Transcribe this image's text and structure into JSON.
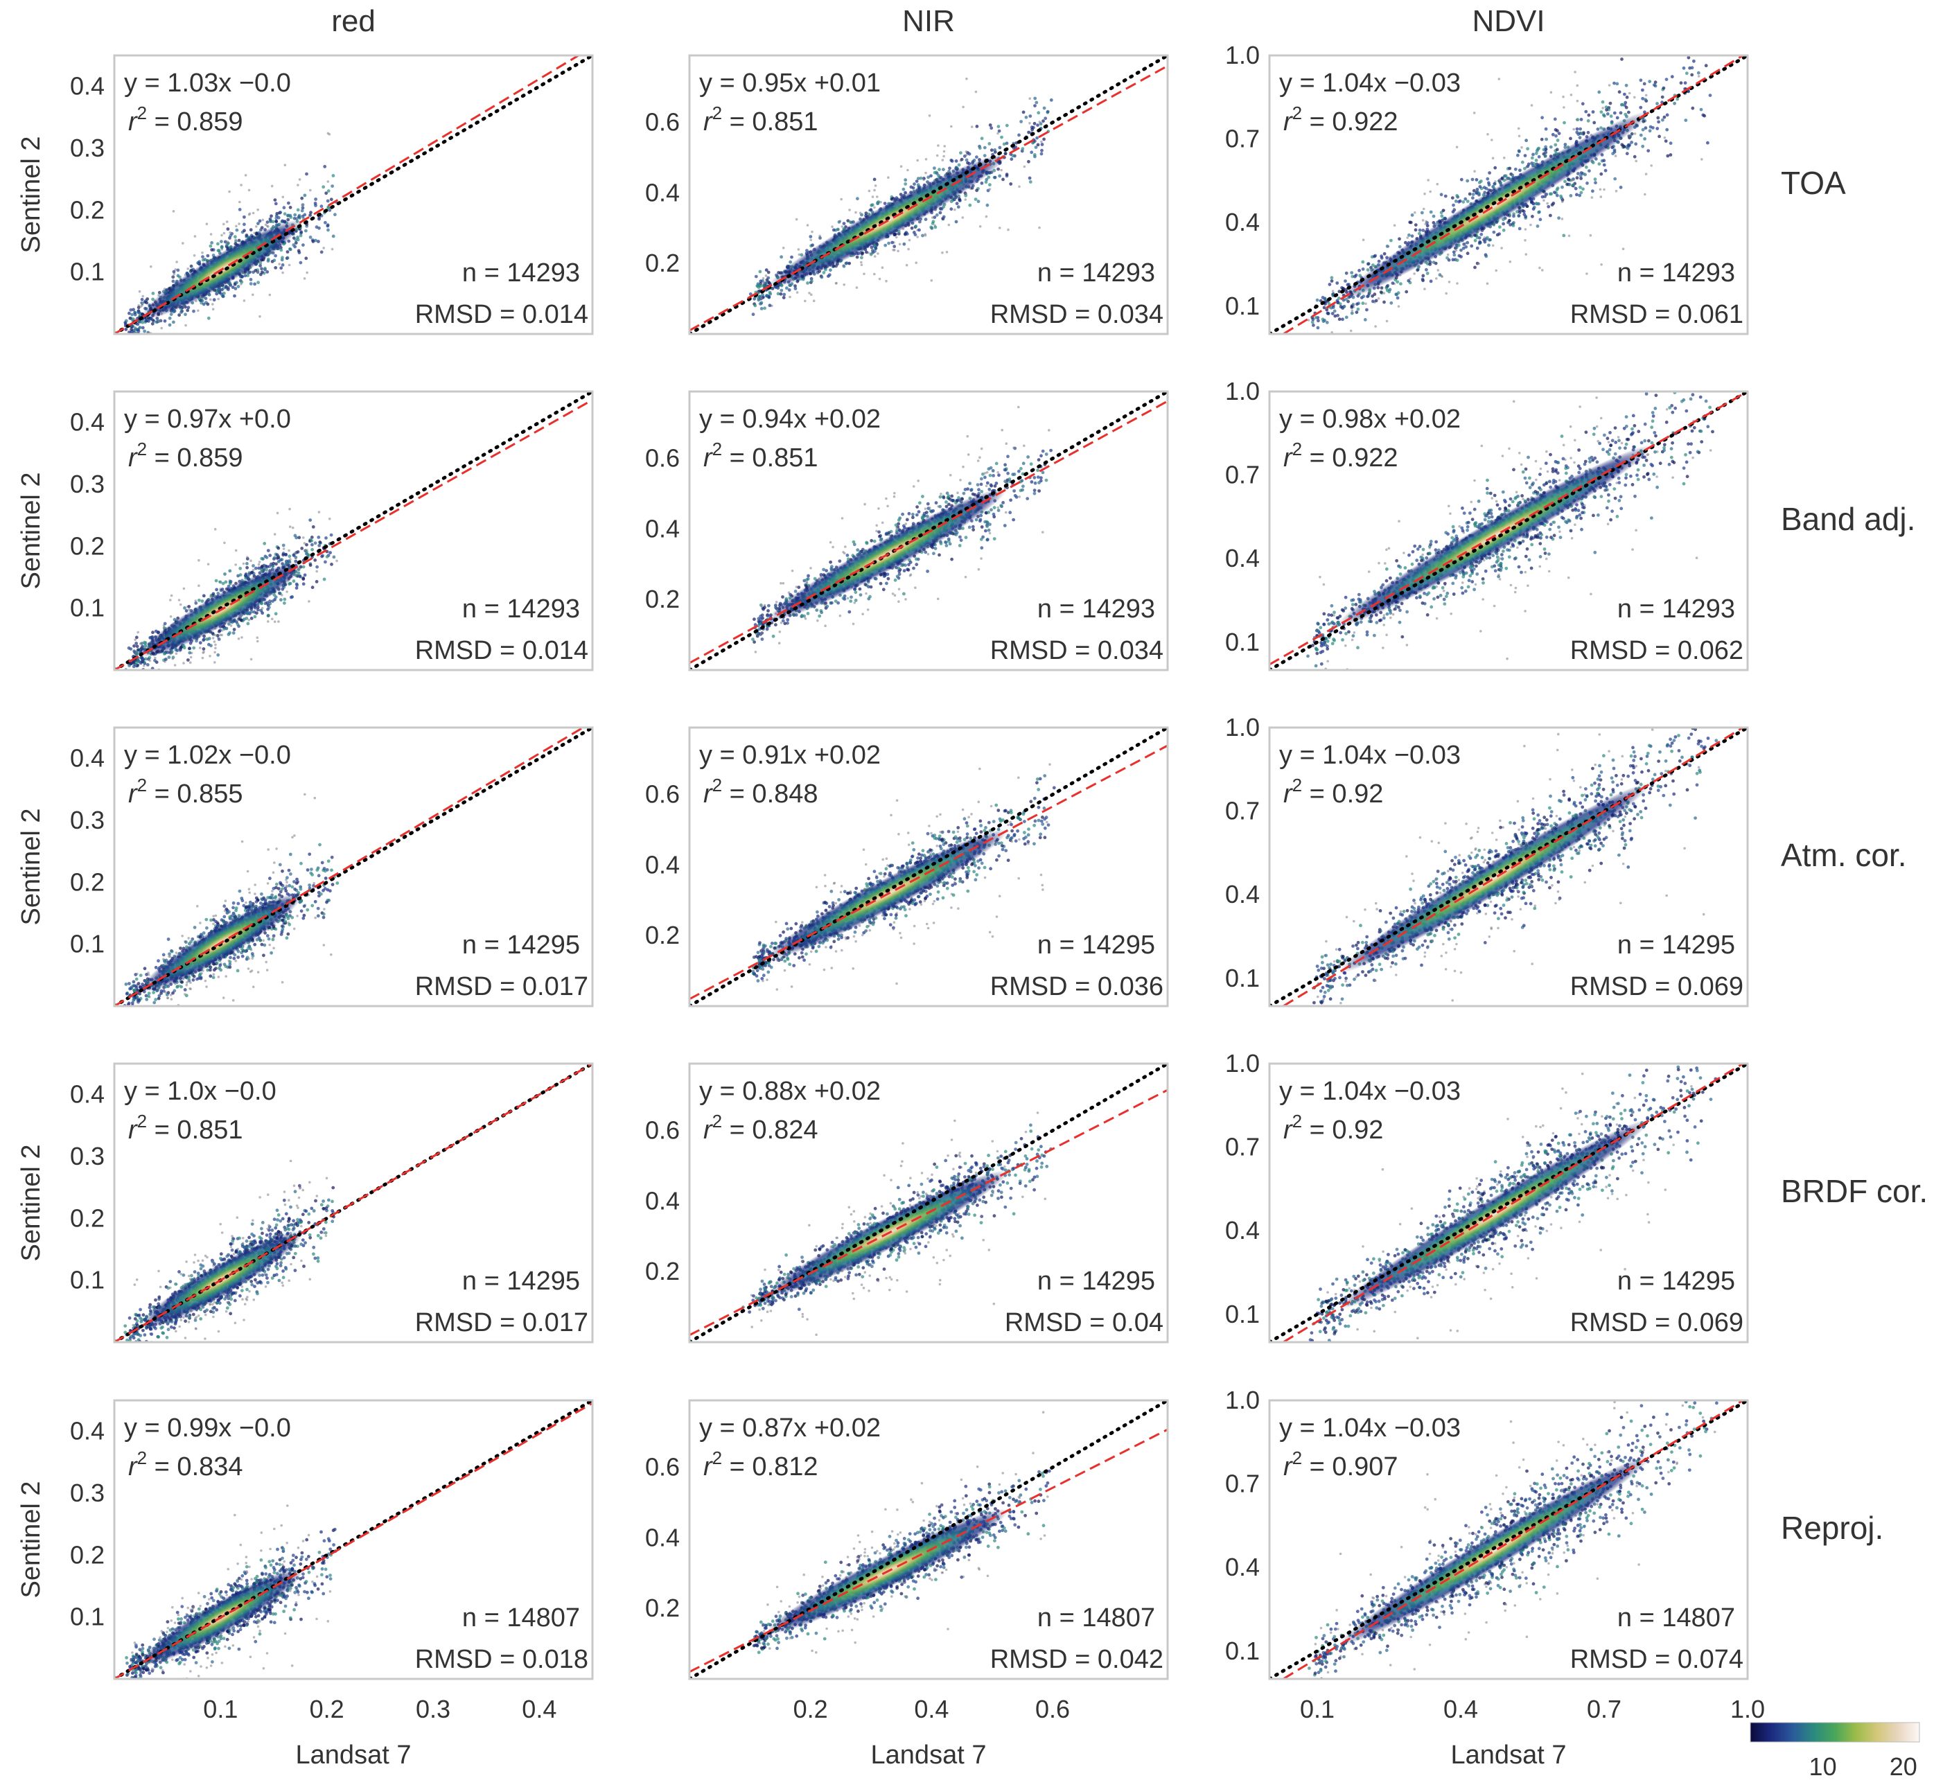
{
  "chart_data": {
    "type": "scatter",
    "subtype": "density-scatter",
    "columns": [
      {
        "id": "red",
        "title": "red",
        "range": [
          0.0,
          0.45
        ],
        "ticks": [
          0.1,
          0.2,
          0.3,
          0.4
        ],
        "tick_labels": [
          "0.1",
          "0.2",
          "0.3",
          "0.4"
        ],
        "x_ticks_shown": [
          0.1,
          0.2,
          0.3,
          0.4
        ],
        "x_tick_labels": [
          "0.1",
          "0.2",
          "0.3",
          "0.4"
        ],
        "cloud_center": [
          0.02,
          0.2
        ],
        "cloud_spread": 0.02
      },
      {
        "id": "nir",
        "title": "NIR",
        "range": [
          0.0,
          0.79
        ],
        "ticks": [
          0.2,
          0.4,
          0.6
        ],
        "tick_labels": [
          "0.2",
          "0.4",
          "0.6"
        ],
        "x_ticks_shown": [
          0.2,
          0.4,
          0.6
        ],
        "x_tick_labels": [
          "0.2",
          "0.4",
          "0.6"
        ],
        "cloud_center": [
          0.12,
          0.58
        ],
        "cloud_spread": 0.035
      },
      {
        "id": "ndvi",
        "title": "NDVI",
        "range": [
          0.0,
          1.0
        ],
        "ticks": [
          0.1,
          0.4,
          0.7,
          1.0
        ],
        "tick_labels": [
          "0.1",
          "0.4",
          "0.7",
          "1.0"
        ],
        "x_ticks_shown": [
          0.1,
          0.4,
          0.7,
          1.0
        ],
        "x_tick_labels": [
          "0.1",
          "0.4",
          "0.7",
          "1.0"
        ],
        "cloud_center": [
          0.12,
          0.9
        ],
        "cloud_spread": 0.07
      }
    ],
    "rows": [
      {
        "label": "TOA",
        "panels": [
          {
            "eq": "y = 1.03x −0.0",
            "r2": "0.859",
            "n": "n = 14293",
            "rmsd": "RMSD = 0.014",
            "slope": 1.03,
            "intercept": 0.0
          },
          {
            "eq": "y = 0.95x +0.01",
            "r2": "0.851",
            "n": "n = 14293",
            "rmsd": "RMSD = 0.034",
            "slope": 0.95,
            "intercept": 0.01
          },
          {
            "eq": "y = 1.04x −0.03",
            "r2": "0.922",
            "n": "n = 14293",
            "rmsd": "RMSD = 0.061",
            "slope": 1.04,
            "intercept": -0.03
          }
        ]
      },
      {
        "label": "Band adj.",
        "panels": [
          {
            "eq": "y = 0.97x +0.0",
            "r2": "0.859",
            "n": "n = 14293",
            "rmsd": "RMSD = 0.014",
            "slope": 0.97,
            "intercept": 0.0
          },
          {
            "eq": "y = 0.94x +0.02",
            "r2": "0.851",
            "n": "n = 14293",
            "rmsd": "RMSD = 0.034",
            "slope": 0.94,
            "intercept": 0.02
          },
          {
            "eq": "y = 0.98x +0.02",
            "r2": "0.922",
            "n": "n = 14293",
            "rmsd": "RMSD = 0.062",
            "slope": 0.98,
            "intercept": 0.02
          }
        ]
      },
      {
        "label": "Atm. cor.",
        "panels": [
          {
            "eq": "y = 1.02x −0.0",
            "r2": "0.855",
            "n": "n = 14295",
            "rmsd": "RMSD = 0.017",
            "slope": 1.02,
            "intercept": 0.0
          },
          {
            "eq": "y = 0.91x +0.02",
            "r2": "0.848",
            "n": "n = 14295",
            "rmsd": "RMSD = 0.036",
            "slope": 0.91,
            "intercept": 0.02
          },
          {
            "eq": "y = 1.04x −0.03",
            "r2": "0.92",
            "n": "n = 14295",
            "rmsd": "RMSD = 0.069",
            "slope": 1.04,
            "intercept": -0.03
          }
        ]
      },
      {
        "label": "BRDF cor.",
        "panels": [
          {
            "eq": "y = 1.0x −0.0",
            "r2": "0.851",
            "n": "n = 14295",
            "rmsd": "RMSD = 0.017",
            "slope": 1.0,
            "intercept": 0.0
          },
          {
            "eq": "y = 0.88x +0.02",
            "r2": "0.824",
            "n": "n = 14295",
            "rmsd": "RMSD = 0.04",
            "slope": 0.88,
            "intercept": 0.02
          },
          {
            "eq": "y = 1.04x −0.03",
            "r2": "0.92",
            "n": "n = 14295",
            "rmsd": "RMSD = 0.069",
            "slope": 1.04,
            "intercept": -0.03
          }
        ]
      },
      {
        "label": "Reproj.",
        "panels": [
          {
            "eq": "y = 0.99x −0.0",
            "r2": "0.834",
            "n": "n = 14807",
            "rmsd": "RMSD = 0.018",
            "slope": 0.99,
            "intercept": 0.0
          },
          {
            "eq": "y = 0.87x +0.02",
            "r2": "0.812",
            "n": "n = 14807",
            "rmsd": "RMSD = 0.042",
            "slope": 0.87,
            "intercept": 0.02
          },
          {
            "eq": "y = 1.04x −0.03",
            "r2": "0.907",
            "n": "n = 14807",
            "rmsd": "RMSD = 0.074",
            "slope": 1.04,
            "intercept": -0.03
          }
        ]
      }
    ],
    "xlabel": "Landsat 7",
    "ylabel": "Sentinel 2",
    "r2_prefix": "r",
    "r2_exponent": "2",
    "r2_suffix": " = ",
    "one_to_one_line": {
      "style": "dotted",
      "color": "#000000"
    },
    "fit_line": {
      "style": "dashed",
      "color": "#e8312c"
    },
    "colorbar": {
      "label_ticks": [
        10,
        20
      ],
      "tick_labels": [
        "10",
        "20"
      ],
      "range": [
        1,
        22
      ],
      "colors": [
        "#0b0b3b",
        "#1c2a80",
        "#2a5a9a",
        "#2b8a7f",
        "#4aa659",
        "#9cbc4a",
        "#d4c77a",
        "#e8d6c0",
        "#fdf8f7"
      ]
    },
    "grid": false
  }
}
